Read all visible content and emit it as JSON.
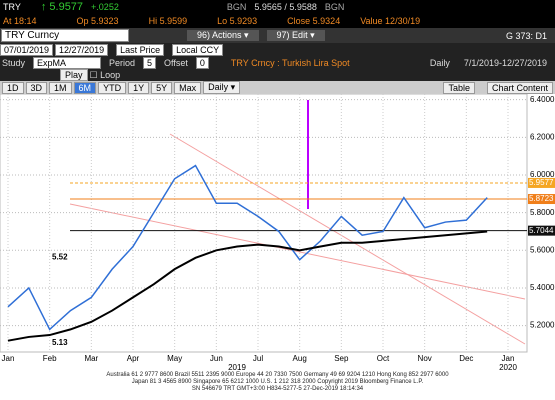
{
  "ui": {
    "quote": {
      "ticker": "TRY",
      "last": "↑ 5.9577",
      "change": "+.0252",
      "src1": "BGN",
      "bidask": "5.9565 / 5.9588",
      "src2": "BGN"
    },
    "stats": {
      "time": "At 18:14",
      "open": "Op 5.9323",
      "high": "Hi 5.9599",
      "low": "Lo 5.9293",
      "close": "Close 5.9324",
      "value": "Value 12/30/19"
    },
    "toolbar": {
      "security": "TRY Curncy",
      "actions": "96) Actions ▾",
      "edit": "97) Edit ▾",
      "page": "G 373: D1"
    },
    "range": {
      "start": "07/01/2019",
      "end": "12/27/2019",
      "field": "Last Price",
      "ccy": "Local CCY"
    },
    "study": {
      "label": "Study",
      "name": "ExpMA",
      "period_label": "Period",
      "period": "5",
      "offset_label": "Offset",
      "offset": "0",
      "desc": "TRY Crncy : Turkish Lira Spot",
      "freq": "Daily",
      "dates": "7/1/2019-12/27/2019"
    },
    "play": {
      "play": "Play",
      "loop": "Loop"
    },
    "periods": [
      "1D",
      "3D",
      "1M",
      "6M",
      "YTD",
      "1Y",
      "5Y",
      "Max",
      "Daily ▾"
    ],
    "table": "Table",
    "content": "Chart Content",
    "footer": [
      "Australia 61 2 9777 8600 Brazil 5511 2395 9000 Europe 44 20 7330 7500 Germany 49 69 9204 1210 Hong Kong 852 2977 6000",
      "Japan 81 3 4565 8900     Singapore 65 6212 1000     U.S. 1 212 318 2000     Copyright 2019 Bloomberg Finance L.P.",
      "SN 546679 TRT  GMT+3:00 H834-5277-5 27-Dec-2019 18:14:34"
    ]
  },
  "chart_data": {
    "type": "line",
    "categories": [
      "Jan",
      null,
      "Feb",
      null,
      "Mar",
      null,
      "Apr",
      null,
      "May",
      null,
      "Jun",
      null,
      "Jul",
      null,
      "Aug",
      null,
      "Sep",
      null,
      "Oct",
      null,
      "Nov",
      null,
      "Dec",
      null,
      "Jan"
    ],
    "years": [
      "2019",
      "2020"
    ],
    "series": [
      {
        "name": "Last Price",
        "color": "#2f6fd6",
        "values": [
          5.3,
          5.4,
          5.18,
          5.28,
          5.35,
          5.5,
          5.62,
          5.8,
          5.98,
          6.05,
          5.85,
          5.85,
          5.78,
          5.7,
          5.55,
          5.65,
          5.78,
          5.68,
          5.7,
          5.88,
          5.72,
          5.75,
          5.76,
          5.88,
          null
        ]
      },
      {
        "name": "ExpMA",
        "color": "#000000",
        "values": [
          5.12,
          5.14,
          5.15,
          5.18,
          5.22,
          5.28,
          5.35,
          5.42,
          5.5,
          5.56,
          5.6,
          5.62,
          5.63,
          5.62,
          5.6,
          5.62,
          5.64,
          5.64,
          5.65,
          5.66,
          5.67,
          5.68,
          5.69,
          5.7,
          null
        ]
      }
    ],
    "ylim": [
      5.06,
      6.43
    ],
    "yticks": [
      {
        "value": 5.2,
        "label": "5.2000"
      },
      {
        "value": 5.4,
        "label": "5.4000"
      },
      {
        "value": 5.6,
        "label": "5.6000"
      },
      {
        "value": 5.8,
        "label": "5.8000"
      },
      {
        "value": 6.0,
        "label": "6.0000"
      },
      {
        "value": 6.2,
        "label": "6.2000"
      },
      {
        "value": 6.4,
        "label": "6.4000"
      }
    ],
    "price_labels": [
      {
        "value": 5.9577,
        "color": "#f5a623"
      },
      {
        "value": 5.8723,
        "color": "#f07f1a"
      },
      {
        "value": 5.7044,
        "color": "#111111"
      }
    ],
    "annotations": [
      "5.52",
      "5.13"
    ],
    "grid": true
  }
}
